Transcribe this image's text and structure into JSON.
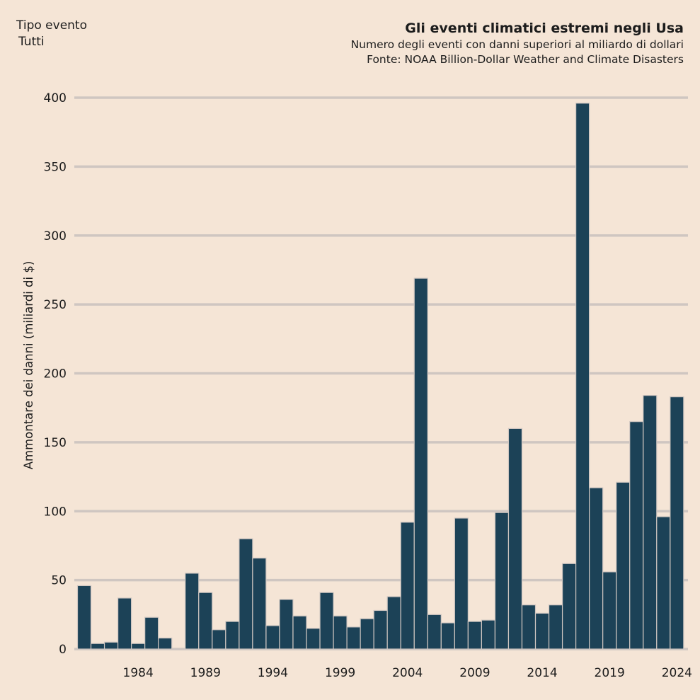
{
  "filter": {
    "label": "Tipo evento",
    "value": "Tutti"
  },
  "header": {
    "title": "Gli eventi climatici estremi negli Usa",
    "subtitle": "Numero degli eventi con danni superiori al miliardo di dollari",
    "source": "Fonte: NOAA Billion-Dollar Weather and Climate Disasters"
  },
  "colors": {
    "bar": "#1c4257",
    "bar_edge": "#cfc6c1",
    "grid": "#cfc6c1",
    "background": "#f5e5d6"
  },
  "chart_data": {
    "type": "bar",
    "title": "Gli eventi climatici estremi negli Usa",
    "xlabel": "",
    "ylabel": "Ammontare dei danni (miliardi di $)",
    "ylim": [
      0,
      400
    ],
    "yticks": [
      0,
      50,
      100,
      150,
      200,
      250,
      300,
      350,
      400
    ],
    "xticks": [
      1984,
      1989,
      1994,
      1999,
      2004,
      2009,
      2014,
      2019,
      2024
    ],
    "grid": true,
    "categories": [
      1980,
      1981,
      1982,
      1983,
      1984,
      1985,
      1986,
      1987,
      1988,
      1989,
      1990,
      1991,
      1992,
      1993,
      1994,
      1995,
      1996,
      1997,
      1998,
      1999,
      2000,
      2001,
      2002,
      2003,
      2004,
      2005,
      2006,
      2007,
      2008,
      2009,
      2010,
      2011,
      2012,
      2013,
      2014,
      2015,
      2016,
      2017,
      2018,
      2019,
      2020,
      2021,
      2022,
      2023,
      2024
    ],
    "values": [
      46,
      4,
      5,
      37,
      4,
      23,
      8,
      0,
      55,
      41,
      14,
      20,
      80,
      66,
      17,
      36,
      24,
      15,
      41,
      24,
      16,
      22,
      28,
      38,
      92,
      269,
      25,
      19,
      95,
      20,
      21,
      99,
      160,
      32,
      26,
      32,
      62,
      396,
      117,
      56,
      121,
      165,
      184,
      96,
      183
    ]
  }
}
